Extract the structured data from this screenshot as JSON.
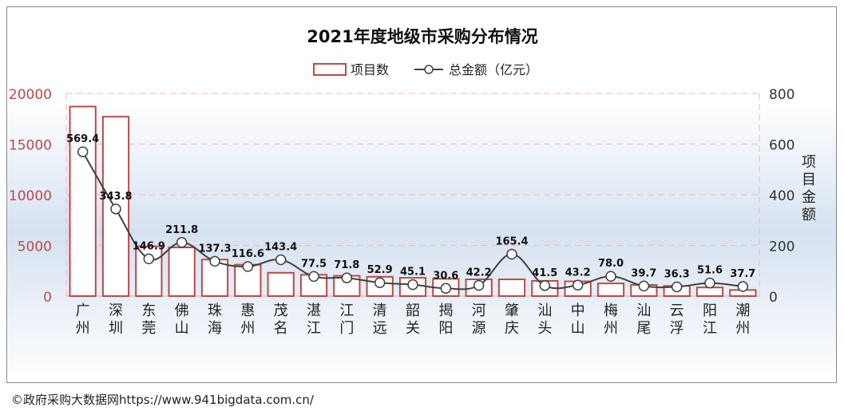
{
  "colors": {
    "bar_stroke": "#b94a48",
    "bar_fill": "#ffffff",
    "line": "#404040",
    "marker_fill": "#ffffff",
    "left_tick": "#b94a48",
    "grid": "#f0b8b8"
  },
  "chart_data": {
    "type": "bar",
    "title": "2021年度地级市采购分布情况",
    "legend": {
      "bars": "项目数",
      "line": "总金额（亿元）",
      "placement": "top"
    },
    "categories": [
      "广州",
      "深圳",
      "东莞",
      "佛山",
      "珠海",
      "惠州",
      "茂名",
      "湛江",
      "江门",
      "清远",
      "韶关",
      "揭阳",
      "河源",
      "肇庆",
      "汕头",
      "中山",
      "梅州",
      "汕尾",
      "云浮",
      "阳江",
      "潮州"
    ],
    "series": [
      {
        "name": "项目数",
        "type": "bar",
        "axis": "left",
        "values": [
          18700,
          17700,
          4900,
          4800,
          3600,
          3100,
          2300,
          2100,
          2000,
          1900,
          1800,
          1700,
          1650,
          1650,
          1500,
          1450,
          1250,
          1100,
          1000,
          850,
          600
        ]
      },
      {
        "name": "总金额（亿元）",
        "type": "line",
        "axis": "right",
        "values": [
          569.4,
          343.8,
          146.9,
          211.8,
          137.3,
          116.6,
          143.4,
          77.5,
          71.8,
          52.9,
          45.1,
          30.6,
          42.2,
          165.4,
          41.5,
          43.2,
          78.0,
          39.7,
          36.3,
          51.6,
          37.7
        ],
        "labels": [
          "569.4",
          "343.8",
          "146.9",
          "211.8",
          "137.3",
          "116.6",
          "143.4",
          "77.5",
          "71.8",
          "52.9",
          "45.1",
          "30.6",
          "42.2",
          "165.4",
          "41.5",
          "43.2",
          "78.0",
          "39.7",
          "36.3",
          "51.6",
          "37.7"
        ]
      }
    ],
    "left_axis": {
      "ylim": [
        0,
        20000
      ],
      "ticks": [
        "0",
        "5000",
        "10000",
        "15000",
        "20000"
      ]
    },
    "right_axis": {
      "ylim": [
        0,
        800
      ],
      "ticks": [
        "0",
        "200",
        "400",
        "600",
        "800"
      ],
      "label": "项目金额"
    },
    "grid": true
  },
  "footer": "©政府采购大数据网https://www.941bigdata.com.cn/"
}
